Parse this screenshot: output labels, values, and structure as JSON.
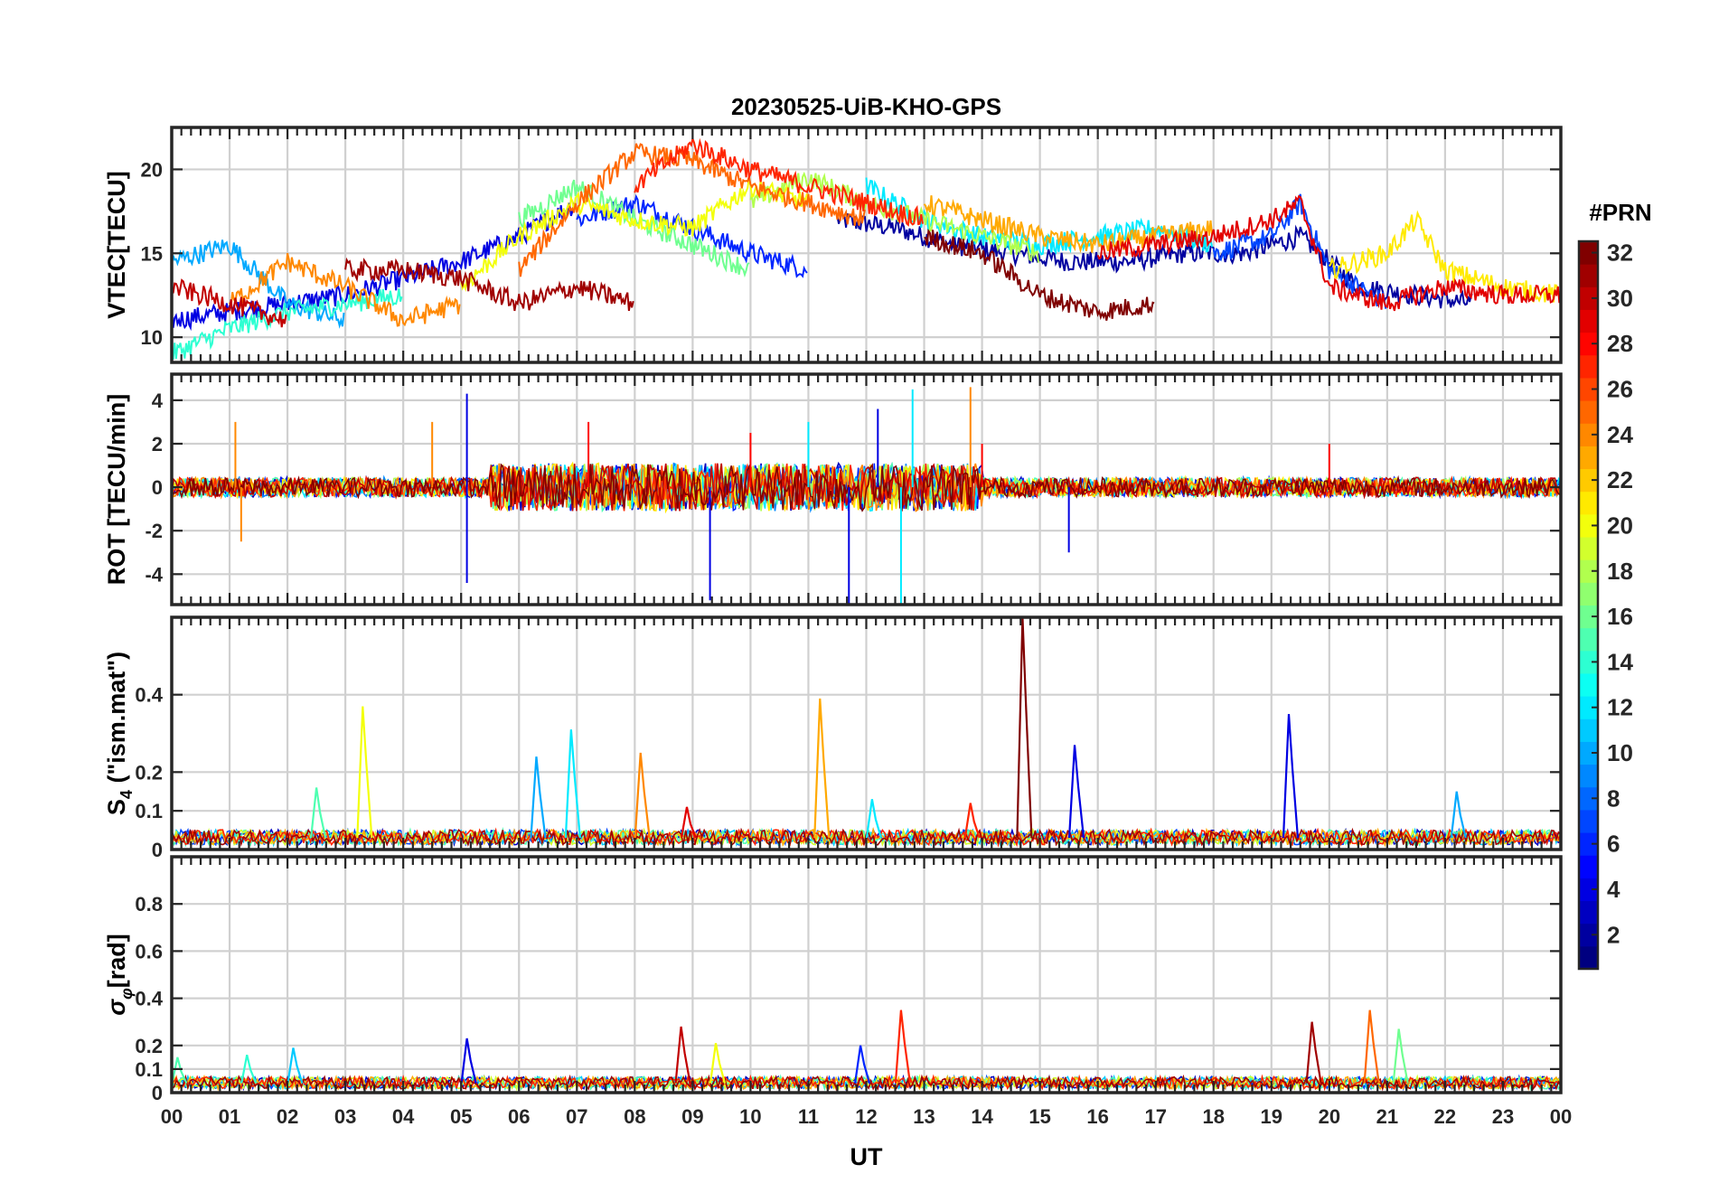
{
  "figure": {
    "title": "20230525-UiB-KHO-GPS",
    "xlabel": "UT"
  },
  "colorbar": {
    "title": "#PRN",
    "range": [
      1,
      32
    ],
    "ticks": [
      2,
      4,
      6,
      8,
      10,
      12,
      14,
      16,
      18,
      20,
      22,
      24,
      26,
      28,
      30,
      32
    ],
    "colormap": "jet",
    "levels": 32
  },
  "chart_data": [
    {
      "id": "vtec",
      "type": "line",
      "ylabel": "VTEC[TECU]",
      "ylim": [
        8.5,
        22.5
      ],
      "yticks": [
        10,
        15,
        20
      ],
      "xlim": [
        0,
        24
      ],
      "xticks": [
        "00",
        "01",
        "02",
        "03",
        "04",
        "05",
        "06",
        "07",
        "08",
        "09",
        "10",
        "11",
        "12",
        "13",
        "14",
        "15",
        "16",
        "17",
        "18",
        "19",
        "20",
        "21",
        "22",
        "23",
        "00"
      ],
      "grid": true,
      "series": [
        {
          "prn": 2,
          "x": [
            11.5,
            12.5,
            13.5,
            14.5,
            15.5,
            16.5,
            17.5,
            18.5,
            19.5,
            20.5,
            21.5,
            22.5
          ],
          "y": [
            17,
            16.5,
            15.5,
            15,
            14.5,
            14.5,
            15,
            15,
            16,
            13,
            12.5,
            12
          ]
        },
        {
          "prn": 4,
          "x": [
            0,
            1,
            2,
            3,
            4,
            5,
            6,
            7
          ],
          "y": [
            11,
            11.5,
            12,
            12.5,
            13.5,
            14.5,
            16,
            18
          ]
        },
        {
          "prn": 6,
          "x": [
            7,
            8,
            9,
            10,
            11
          ],
          "y": [
            17,
            18,
            16.5,
            15,
            14
          ]
        },
        {
          "prn": 7,
          "x": [
            18,
            19,
            19.5,
            20,
            21
          ],
          "y": [
            15,
            16,
            18,
            14,
            12
          ]
        },
        {
          "prn": 10,
          "x": [
            0,
            1,
            2,
            3
          ],
          "y": [
            14.5,
            15.5,
            12,
            11
          ]
        },
        {
          "prn": 12,
          "x": [
            12,
            13,
            14,
            15,
            16,
            17,
            18
          ],
          "y": [
            19,
            17,
            16,
            15.5,
            16,
            16.5,
            15.5
          ]
        },
        {
          "prn": 14,
          "x": [
            0,
            1,
            2,
            3,
            4
          ],
          "y": [
            9,
            10.5,
            11.5,
            12,
            12.5
          ]
        },
        {
          "prn": 16,
          "x": [
            6,
            7,
            8,
            9,
            10
          ],
          "y": [
            17,
            19,
            17,
            15.5,
            14
          ]
        },
        {
          "prn": 18,
          "x": [
            10,
            11,
            12,
            13,
            14,
            15
          ],
          "y": [
            18,
            19.5,
            18,
            17,
            16,
            15
          ]
        },
        {
          "prn": 20,
          "x": [
            5,
            6,
            7,
            8,
            9,
            10,
            11
          ],
          "y": [
            13,
            16,
            18,
            17,
            16.5,
            19,
            18
          ]
        },
        {
          "prn": 21,
          "x": [
            20,
            21,
            21.5,
            22,
            23,
            24
          ],
          "y": [
            14,
            15,
            17,
            14,
            13,
            12.5
          ]
        },
        {
          "prn": 23,
          "x": [
            13,
            14,
            15,
            16,
            17,
            18
          ],
          "y": [
            18,
            17,
            16,
            15.5,
            16,
            16.5
          ]
        },
        {
          "prn": 24,
          "x": [
            1,
            2,
            3,
            4,
            5
          ],
          "y": [
            12,
            14.5,
            13,
            11,
            12
          ]
        },
        {
          "prn": 25,
          "x": [
            6,
            7,
            8,
            9,
            10,
            11,
            12
          ],
          "y": [
            14,
            18,
            21,
            20.5,
            19,
            18,
            17
          ]
        },
        {
          "prn": 27,
          "x": [
            8,
            9,
            10,
            11,
            12,
            13
          ],
          "y": [
            19,
            21.5,
            20,
            19,
            18,
            17
          ]
        },
        {
          "prn": 29,
          "x": [
            16,
            17,
            18,
            19,
            19.5,
            20,
            21,
            22,
            23,
            24
          ],
          "y": [
            15,
            15.5,
            16,
            17,
            18,
            13,
            12,
            13,
            12.5,
            12.5
          ]
        },
        {
          "prn": 30,
          "x": [
            0,
            1,
            2
          ],
          "y": [
            13,
            12,
            11
          ]
        },
        {
          "prn": 31,
          "x": [
            3,
            4,
            5,
            6,
            7,
            8
          ],
          "y": [
            14,
            14,
            13.5,
            12,
            13,
            12
          ]
        },
        {
          "prn": 32,
          "x": [
            13,
            14,
            15,
            16,
            17
          ],
          "y": [
            16,
            15,
            12.5,
            11.5,
            12
          ]
        }
      ]
    },
    {
      "id": "rot",
      "type": "line",
      "ylabel": "ROT [TECU/min]",
      "ylim": [
        -5.4,
        5.2
      ],
      "yticks": [
        -4,
        -2,
        0,
        2,
        4
      ],
      "xlim": [
        0,
        24
      ],
      "grid": true,
      "series": [
        {
          "prn": 4,
          "x": [
            0,
            3.5,
            5.1,
            5.1,
            8,
            9.3,
            11.7,
            12.2,
            13,
            15.5,
            24
          ],
          "y": [
            0,
            0,
            4.3,
            -4.4,
            0,
            -5.2,
            -5.5,
            3.6,
            0,
            -3,
            0
          ]
        },
        {
          "prn": 12,
          "x": [
            0,
            11,
            12.6,
            12.8,
            24
          ],
          "y": [
            0,
            3,
            -5.5,
            4.5,
            0
          ]
        },
        {
          "prn": 24,
          "x": [
            0,
            1.1,
            1.2,
            4.5,
            13.8,
            24
          ],
          "y": [
            0,
            3,
            -2.5,
            3,
            4.6,
            0
          ]
        },
        {
          "prn": 28,
          "x": [
            0,
            7.2,
            10,
            14,
            20,
            24
          ],
          "y": [
            0,
            3,
            2.5,
            2,
            2,
            0
          ]
        }
      ]
    },
    {
      "id": "s4",
      "type": "line",
      "ylabel": "S4 (\"ism.mat\")",
      "ylim": [
        0,
        0.6
      ],
      "yticks": [
        0,
        0.1,
        0.2,
        0.4
      ],
      "xlim": [
        0,
        24
      ],
      "grid": true,
      "spikes": [
        {
          "prn": 20,
          "x": 3.3,
          "y": 0.37
        },
        {
          "prn": 15,
          "x": 2.5,
          "y": 0.16
        },
        {
          "prn": 10,
          "x": 6.3,
          "y": 0.24
        },
        {
          "prn": 12,
          "x": 6.9,
          "y": 0.31
        },
        {
          "prn": 24,
          "x": 8.1,
          "y": 0.25
        },
        {
          "prn": 29,
          "x": 8.9,
          "y": 0.11
        },
        {
          "prn": 23,
          "x": 11.2,
          "y": 0.39
        },
        {
          "prn": 12,
          "x": 12.1,
          "y": 0.13
        },
        {
          "prn": 27,
          "x": 13.8,
          "y": 0.12
        },
        {
          "prn": 32,
          "x": 14.7,
          "y": 0.6
        },
        {
          "prn": 4,
          "x": 15.6,
          "y": 0.27
        },
        {
          "prn": 4,
          "x": 19.3,
          "y": 0.35
        },
        {
          "prn": 10,
          "x": 22.2,
          "y": 0.15
        }
      ]
    },
    {
      "id": "sigma_phi",
      "type": "line",
      "ylabel": "σφ[rad]",
      "ylim": [
        0,
        1.0
      ],
      "yticks": [
        0,
        0.1,
        0.2,
        0.4,
        0.6,
        0.8
      ],
      "xlim": [
        0,
        24
      ],
      "grid": true,
      "spikes": [
        {
          "prn": 15,
          "x": 0.1,
          "y": 0.15
        },
        {
          "prn": 14,
          "x": 1.3,
          "y": 0.16
        },
        {
          "prn": 11,
          "x": 2.1,
          "y": 0.19
        },
        {
          "prn": 4,
          "x": 5.1,
          "y": 0.23
        },
        {
          "prn": 30,
          "x": 8.8,
          "y": 0.28
        },
        {
          "prn": 20,
          "x": 9.4,
          "y": 0.21
        },
        {
          "prn": 6,
          "x": 11.9,
          "y": 0.2
        },
        {
          "prn": 27,
          "x": 12.6,
          "y": 0.35
        },
        {
          "prn": 31,
          "x": 19.7,
          "y": 0.3
        },
        {
          "prn": 25,
          "x": 20.7,
          "y": 0.35
        },
        {
          "prn": 16,
          "x": 21.2,
          "y": 0.27
        }
      ]
    }
  ]
}
